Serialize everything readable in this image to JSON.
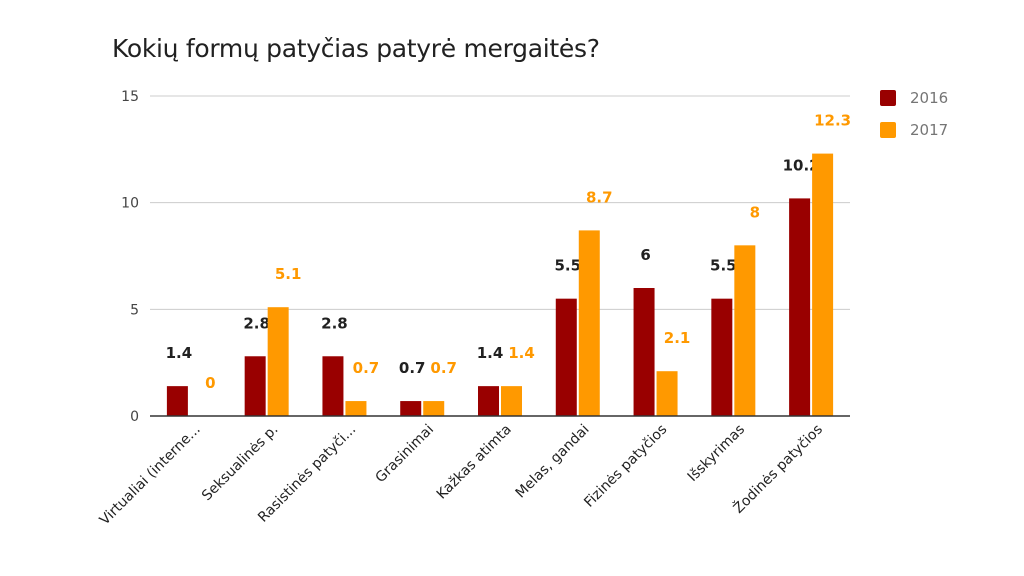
{
  "chart_data": {
    "type": "bar",
    "title": "Kokių formų patyčias patyrė mergaitės?",
    "xlabel": "",
    "ylabel": "",
    "categories": [
      "Virtualiai (interne...",
      "Seksualinės p.",
      "Rasistinės patyči...",
      "Grasinimai",
      "Kažkas atimta",
      "Melas, gandai",
      "Fizinės patyčios",
      "Išskyrimas",
      "Žodinės patyčios"
    ],
    "series": [
      {
        "name": "2016",
        "color": "#990000",
        "label_color": "#212121",
        "values": [
          1.4,
          2.8,
          2.8,
          0.7,
          1.4,
          5.5,
          6,
          5.5,
          10.2
        ]
      },
      {
        "name": "2017",
        "color": "#ff9900",
        "label_color": "#ff9900",
        "values": [
          0,
          5.1,
          0.7,
          0.7,
          1.4,
          8.7,
          2.1,
          8,
          12.3
        ]
      }
    ],
    "ylim": [
      0,
      15
    ],
    "yticks": [
      0,
      5,
      10,
      15
    ],
    "grid": true,
    "legend_position": "right"
  }
}
